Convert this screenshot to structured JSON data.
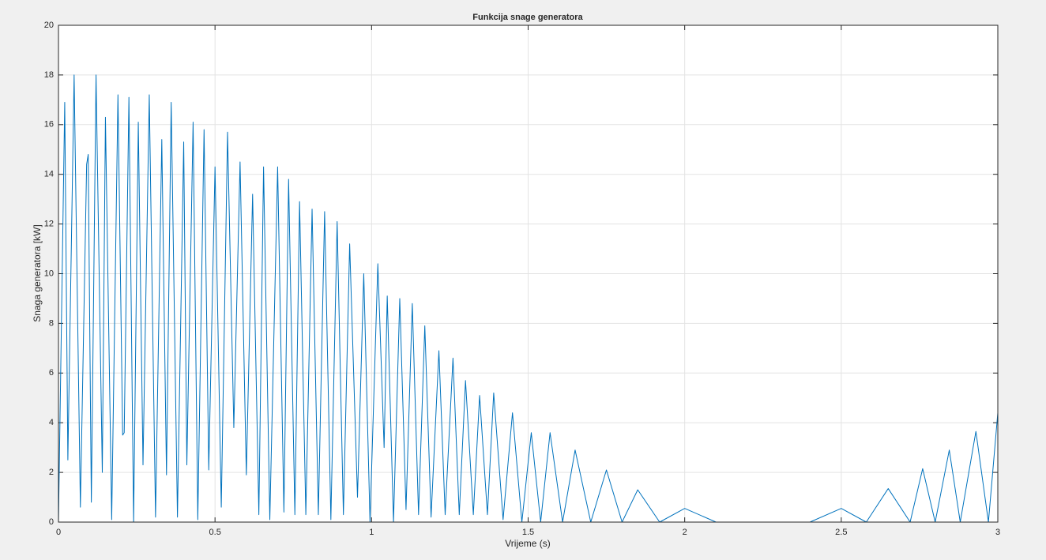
{
  "chart_data": {
    "type": "line",
    "title": "Funkcija snage generatora",
    "x_label": "Vrijeme (s)",
    "y_label": "Snaga generatora [kW]",
    "x": [
      0,
      0.02,
      0.03,
      0.05,
      0.07,
      0.09,
      0.095,
      0.105,
      0.12,
      0.14,
      0.15,
      0.17,
      0.19,
      0.205,
      0.21,
      0.225,
      0.24,
      0.255,
      0.27,
      0.29,
      0.31,
      0.33,
      0.345,
      0.36,
      0.38,
      0.4,
      0.41,
      0.43,
      0.445,
      0.465,
      0.48,
      0.5,
      0.52,
      0.54,
      0.56,
      0.58,
      0.6,
      0.62,
      0.64,
      0.655,
      0.675,
      0.7,
      0.72,
      0.735,
      0.755,
      0.77,
      0.79,
      0.81,
      0.83,
      0.85,
      0.87,
      0.89,
      0.91,
      0.93,
      0.955,
      0.975,
      0.995,
      1.02,
      1.04,
      1.05,
      1.07,
      1.09,
      1.11,
      1.13,
      1.15,
      1.17,
      1.19,
      1.215,
      1.235,
      1.26,
      1.28,
      1.3,
      1.325,
      1.345,
      1.37,
      1.39,
      1.42,
      1.45,
      1.48,
      1.51,
      1.54,
      1.57,
      1.61,
      1.65,
      1.7,
      1.75,
      1.8,
      1.85,
      1.92,
      2.0,
      2.1,
      2.4,
      2.5,
      2.58,
      2.65,
      2.72,
      2.76,
      2.8,
      2.845,
      2.88,
      2.93,
      2.97,
      3.0
    ],
    "series": [
      {
        "color": "#0072bd",
        "values": [
          0,
          16.9,
          2.5,
          18.0,
          0.6,
          14.4,
          14.8,
          0.8,
          18.0,
          2.0,
          16.3,
          0.1,
          17.2,
          3.5,
          3.6,
          17.1,
          0,
          16.1,
          2.3,
          17.2,
          0.2,
          15.4,
          1.9,
          16.9,
          0.2,
          15.3,
          2.3,
          16.1,
          0.1,
          15.8,
          2.1,
          14.3,
          0.6,
          15.7,
          3.8,
          14.5,
          1.9,
          13.2,
          0.3,
          14.3,
          0.1,
          14.3,
          0.4,
          13.8,
          0.3,
          12.9,
          0.3,
          12.6,
          0.3,
          12.5,
          0.1,
          12.1,
          0.3,
          11.2,
          1.0,
          10.0,
          0,
          10.4,
          3.0,
          9.1,
          0,
          9.0,
          0.5,
          8.8,
          0.3,
          7.9,
          0.2,
          6.9,
          0.3,
          6.6,
          0.3,
          5.7,
          0.3,
          5.1,
          0.3,
          5.2,
          0.1,
          4.4,
          0,
          3.6,
          0,
          3.6,
          0,
          2.9,
          0,
          2.1,
          0,
          1.3,
          0,
          0.55,
          0,
          0,
          0.55,
          0,
          1.35,
          0,
          2.15,
          0,
          2.9,
          0,
          3.65,
          0,
          4.4
        ]
      }
    ],
    "xlim": [
      0,
      3
    ],
    "ylim": [
      0,
      20
    ],
    "xticks": [
      0,
      0.5,
      1,
      1.5,
      2,
      2.5,
      3
    ],
    "yticks": [
      0,
      2,
      4,
      6,
      8,
      10,
      12,
      14,
      16,
      18,
      20
    ],
    "grid": true
  }
}
